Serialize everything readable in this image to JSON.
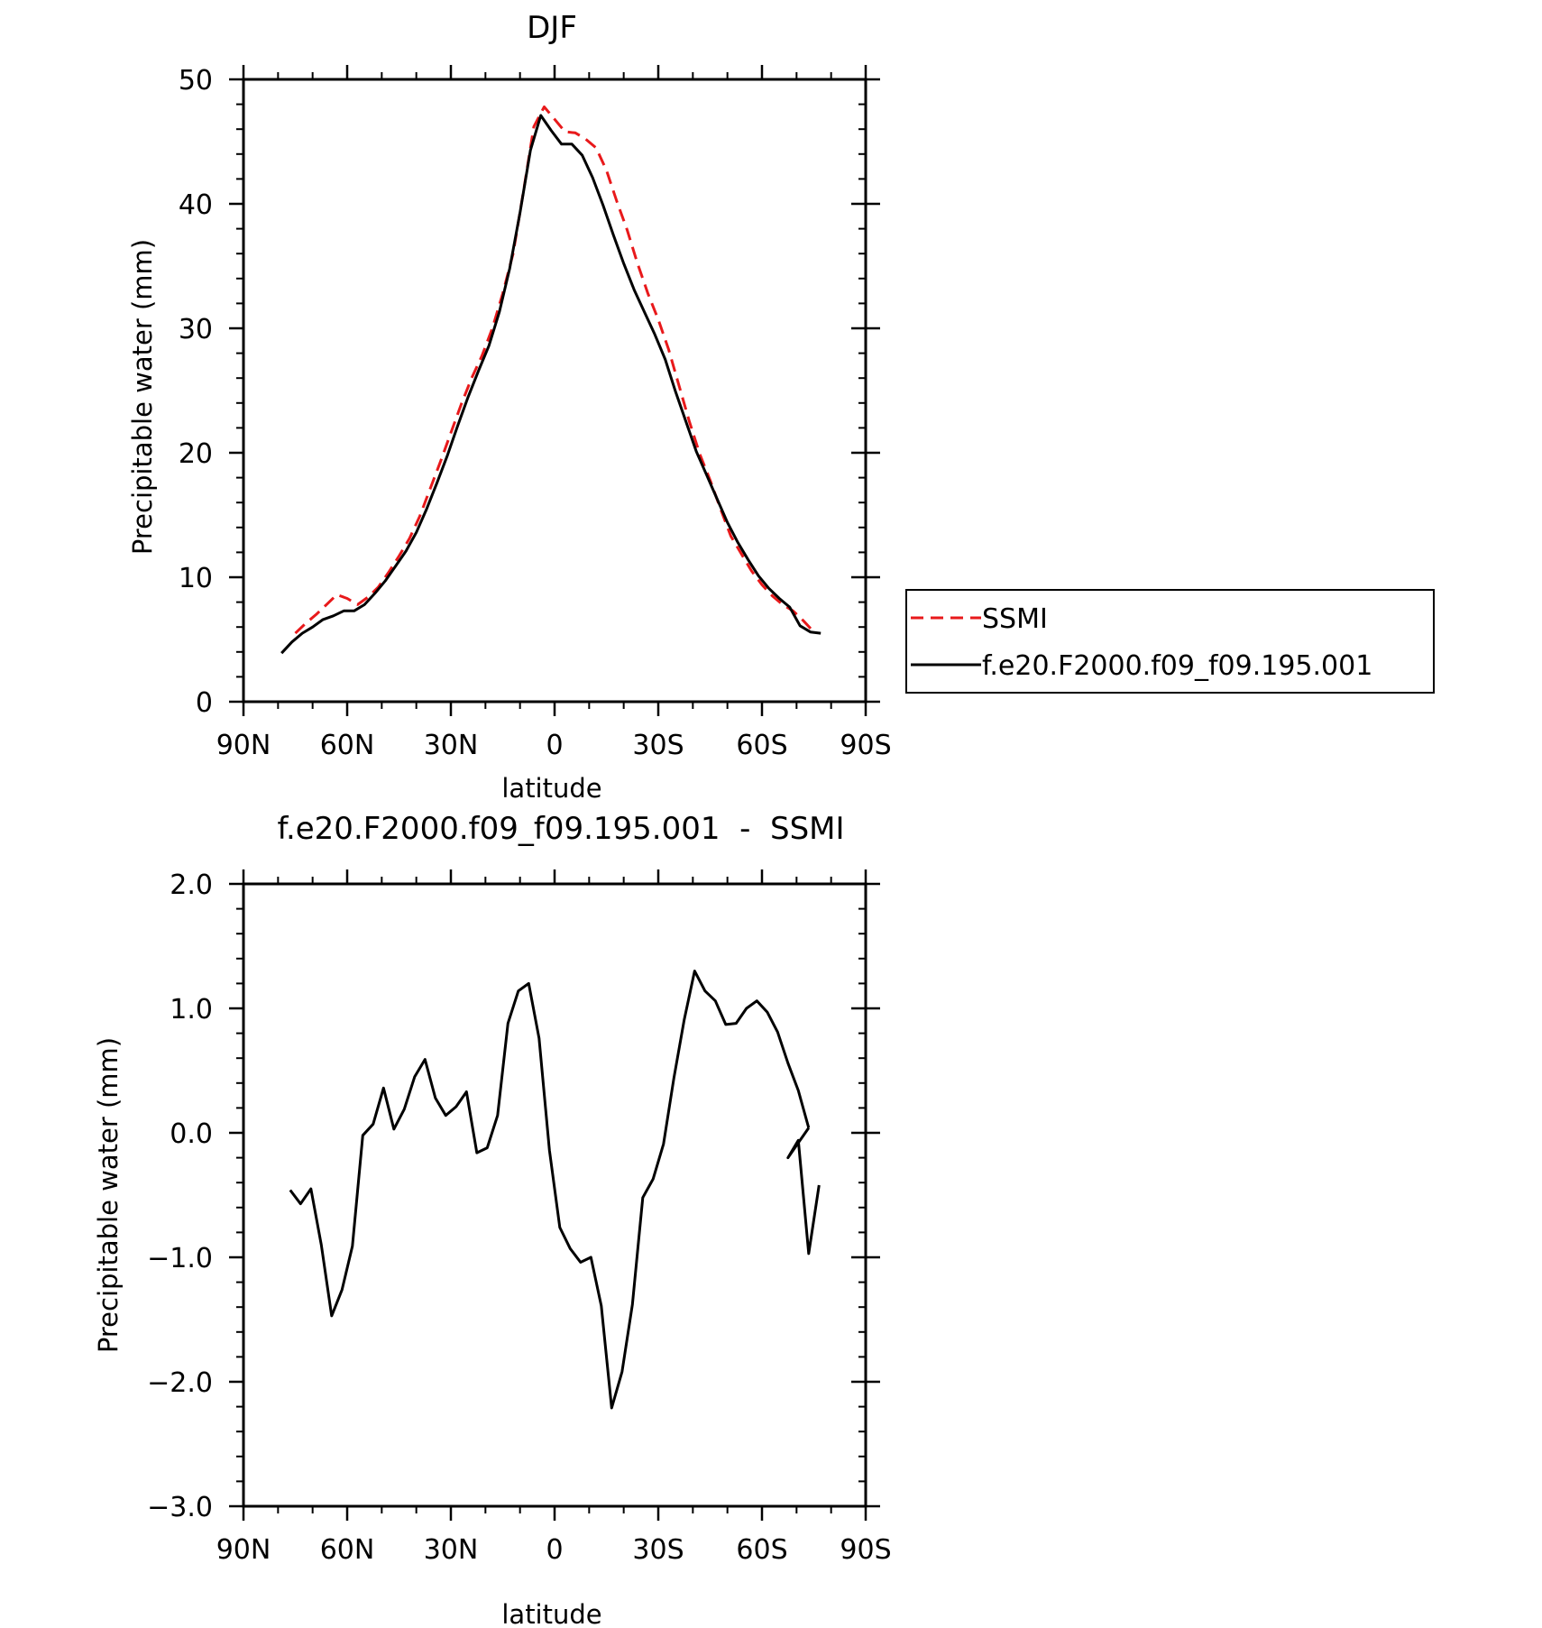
{
  "chart_data": [
    {
      "type": "line",
      "title": "DJF",
      "xlabel": "latitude",
      "ylabel": "Precipitable water (mm)",
      "xlim": [
        90,
        -90
      ],
      "ylim": [
        0,
        50
      ],
      "xticks": [
        90,
        60,
        30,
        0,
        -30,
        -60,
        -90
      ],
      "xtick_labels": [
        "90N",
        "60N",
        "30N",
        "0",
        "30S",
        "60S",
        "90S"
      ],
      "yticks": [
        0,
        10,
        20,
        30,
        40,
        50
      ],
      "ytick_labels": [
        "0",
        "10",
        "20",
        "30",
        "40",
        "50"
      ],
      "legend": "right-outside",
      "series": [
        {
          "name": "SSMI",
          "color": "#e8191b",
          "dash": "dashed",
          "x": [
            75,
            72,
            69,
            66,
            63,
            60,
            57,
            54,
            51,
            48,
            45,
            42,
            39,
            36,
            33,
            30,
            27,
            24,
            21,
            18,
            15,
            12,
            9,
            6,
            3,
            0,
            -3,
            -6,
            -9,
            -12,
            -15,
            -18,
            -21,
            -24,
            -27,
            -30,
            -33,
            -36,
            -39,
            -42,
            -45,
            -48,
            -51,
            -54,
            -57,
            -60,
            -63,
            -66,
            -69,
            -72,
            -75
          ],
          "y": [
            5.5,
            6.3,
            7.0,
            7.8,
            8.6,
            8.3,
            7.8,
            8.4,
            9.2,
            10.4,
            11.7,
            13.1,
            14.9,
            17.1,
            19.3,
            21.6,
            23.9,
            26.0,
            27.8,
            30.0,
            32.8,
            36.0,
            41.0,
            46.2,
            47.8,
            46.8,
            45.8,
            45.7,
            45.2,
            44.5,
            42.7,
            40.2,
            37.9,
            35.2,
            32.8,
            30.7,
            28.3,
            25.4,
            22.5,
            19.9,
            17.8,
            15.5,
            13.3,
            11.9,
            10.5,
            9.4,
            8.5,
            7.8,
            7.3,
            6.5,
            5.6
          ]
        },
        {
          "name": "f.e20.F2000.f09_f09.195.001",
          "color": "#000000",
          "dash": "solid",
          "x": [
            79,
            76,
            73,
            70,
            67,
            64,
            61,
            58,
            55,
            52,
            49,
            46,
            43,
            40,
            37,
            34,
            31,
            28,
            25,
            22,
            19,
            16,
            13,
            10,
            7,
            4,
            1,
            -2,
            -5,
            -8,
            -11,
            -14,
            -17,
            -20,
            -23,
            -26,
            -29,
            -32,
            -35,
            -38,
            -41,
            -44,
            -47,
            -50,
            -53,
            -56,
            -59,
            -62,
            -65,
            -68,
            -71,
            -74,
            -77
          ],
          "y": [
            3.9,
            4.8,
            5.5,
            6.0,
            6.6,
            6.9,
            7.3,
            7.3,
            7.8,
            8.7,
            9.7,
            10.9,
            12.1,
            13.6,
            15.5,
            17.6,
            19.8,
            22.2,
            24.5,
            26.6,
            28.6,
            31.3,
            34.8,
            39.3,
            44.3,
            47.1,
            45.9,
            44.8,
            44.8,
            43.9,
            42.1,
            39.9,
            37.5,
            35.2,
            33.1,
            31.3,
            29.5,
            27.5,
            24.9,
            22.5,
            20.1,
            18.2,
            16.3,
            14.4,
            12.8,
            11.4,
            10.1,
            9.1,
            8.3,
            7.6,
            6.1,
            5.6,
            5.5
          ]
        }
      ]
    },
    {
      "type": "line",
      "title": "f.e20.F2000.f09_f09.195.001  -  SSMI",
      "xlabel": "latitude",
      "ylabel": "Precipitable water (mm)",
      "xlim": [
        90,
        -90
      ],
      "ylim": [
        -3.0,
        2.0
      ],
      "xticks": [
        90,
        60,
        30,
        0,
        -30,
        -60,
        -90
      ],
      "xtick_labels": [
        "90N",
        "60N",
        "30N",
        "0",
        "30S",
        "60S",
        "90S"
      ],
      "yticks": [
        -3.0,
        -2.0,
        -1.0,
        0.0,
        1.0,
        2.0
      ],
      "ytick_labels": [
        "−3.0",
        "−2.0",
        "−1.0",
        "0.0",
        "1.0",
        "2.0"
      ],
      "series": [
        {
          "color": "#000000",
          "dash": "solid",
          "x": [
            76.5,
            73.5,
            70.5,
            67.5,
            64.5,
            61.5,
            58.5,
            55.5,
            52.5,
            49.5,
            46.5,
            43.5,
            40.5,
            37.5,
            34.5,
            31.5,
            28.5,
            25.5,
            22.5,
            19.5,
            16.5,
            13.5,
            10.5,
            7.5,
            4.5,
            1.5,
            -1.5,
            -4.5,
            -7.5,
            -10.5,
            -13.5,
            -16.5,
            -19.5,
            -22.5,
            -25.5,
            -28.5,
            -31.5,
            -34.5,
            -37.5,
            -40.5,
            -43.5,
            -46.5,
            -49.5,
            -52.5,
            -55.5,
            -58.5,
            -61.5,
            -64.5,
            -67.5,
            -70.5,
            -73.5
          ],
          "y": [
            -0.46,
            -0.57,
            -0.45,
            -0.9,
            -1.47,
            -1.26,
            -0.91,
            -0.02,
            0.07,
            0.36,
            0.03,
            0.19,
            0.45,
            0.59,
            0.28,
            0.14,
            0.21,
            0.33,
            -0.16,
            -0.12,
            0.14,
            0.88,
            1.14,
            1.2,
            0.76,
            -0.14,
            -0.76,
            -0.93,
            -1.04,
            -1.0,
            -1.39,
            -2.21,
            -1.92,
            -1.38,
            -0.52,
            -0.37,
            -0.09,
            0.44,
            0.91,
            1.3,
            1.14,
            1.06,
            0.87,
            0.88,
            1.0,
            1.06,
            0.97,
            0.81,
            0.56,
            0.34,
            0.04
          ]
        }
      ],
      "note_tail": [
        -0.2,
        -0.06,
        -0.97,
        -0.42
      ]
    }
  ]
}
